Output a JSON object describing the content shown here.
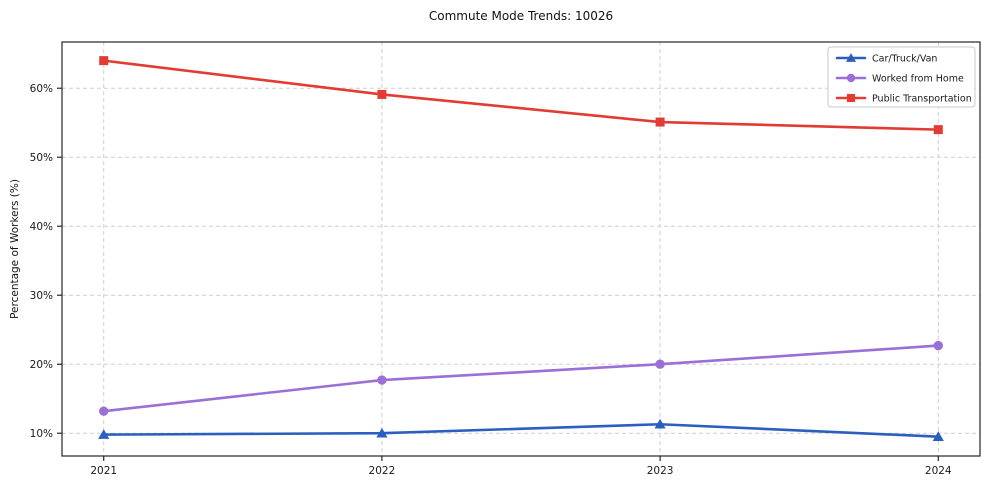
{
  "chart_data": {
    "type": "line",
    "title": "Commute Mode Trends: 10026",
    "xlabel": "",
    "ylabel": "Percentage of Workers (%)",
    "x": [
      2021,
      2022,
      2023,
      2024
    ],
    "x_labels": [
      "2021",
      "2022",
      "2023",
      "2024"
    ],
    "series": [
      {
        "name": "Car/Truck/Van",
        "marker": "triangle",
        "color": "#2a5fc0",
        "values": [
          9.8,
          10.0,
          11.3,
          9.5
        ]
      },
      {
        "name": "Worked from Home",
        "marker": "circle",
        "color": "#9a70d8",
        "values": [
          13.2,
          17.7,
          20.0,
          22.7
        ]
      },
      {
        "name": "Public Transportation",
        "marker": "square",
        "color": "#e13b34",
        "values": [
          64.0,
          59.1,
          55.1,
          54.0
        ]
      }
    ],
    "yticks": [
      10,
      20,
      30,
      40,
      50,
      60
    ],
    "ytick_labels": [
      "10%",
      "20%",
      "30%",
      "40%",
      "50%",
      "60%"
    ],
    "ylim": [
      6.7,
      66.7
    ],
    "xlim": [
      2020.85,
      2024.15
    ],
    "grid": true,
    "grid_color": "#cfcfcf",
    "axis_color": "#262626",
    "tick_label_color": "#1a1a1a",
    "background": "#ffffff",
    "legend_position": "upper right",
    "legend_border_color": "#c9c9c9"
  }
}
